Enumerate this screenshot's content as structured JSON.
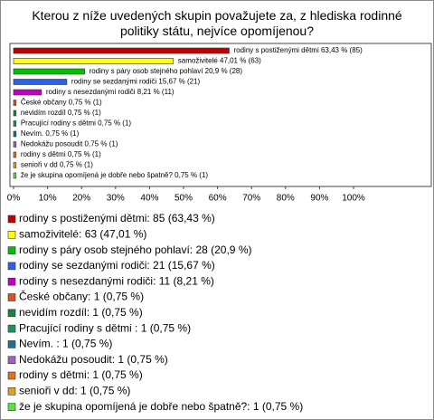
{
  "chart_data": {
    "type": "bar",
    "orientation": "horizontal",
    "title": "Kterou z níže uvedených skupin považujete za, z hlediska rodinné politiky státu, nejvíce opomíjenou?",
    "categories": [
      "rodiny s postiženými dětmi",
      "samoživitelé",
      "rodiny s páry osob stejného pohlaví",
      "rodiny se sezdanými rodiči",
      "rodiny s nesezdanými rodiči",
      "České občany",
      "nevidím rozdíl",
      "Pracující rodiny s dětmi ",
      "Nevím. ",
      "Nedokážu posoudit",
      "rodiny s dětmi",
      "senioři v dd",
      "že je skupina opomíjená je dobře nebo špatně?"
    ],
    "values": [
      63.43,
      47.01,
      20.9,
      15.67,
      8.21,
      0.75,
      0.75,
      0.75,
      0.75,
      0.75,
      0.75,
      0.75,
      0.75
    ],
    "value_labels": [
      "rodiny s postiženými dětmi 63,43 % (85)",
      "samoživitelé 47,01 % (63)",
      "rodiny s páry osob stejného pohlaví 20,9 % (28)",
      "rodiny se sezdanými rodiči 15,67 % (21)",
      "rodiny s nesezdanými rodiči 8,21 % (11)",
      "České občany 0,75 % (1)",
      "nevidím rozdíl 0,75 % (1)",
      "Pracující rodiny s dětmi  0,75 % (1)",
      "Nevím.  0,75 % (1)",
      "Nedokážu posoudit 0,75 % (1)",
      "rodiny s dětmi 0,75 % (1)",
      "senioři v dd 0,75 % (1)",
      "že je skupina opomíjená je dobře nebo špatně? 0,75 % (1)"
    ],
    "legend_labels": [
      "rodiny s postiženými dětmi: 85 (63,43 %)",
      "samoživitelé: 63 (47,01 %)",
      "rodiny s páry osob stejného pohlaví: 28 (20,9 %)",
      "rodiny se sezdanými rodiči: 21 (15,67 %)",
      "rodiny s nesezdanými rodiči: 11 (8,21 %)",
      "České občany: 1 (0,75 %)",
      "nevidím rozdíl: 1 (0,75 %)",
      "Pracující rodiny s dětmi : 1 (0,75 %)",
      "Nevím. : 1 (0,75 %)",
      "Nedokážu posoudit: 1 (0,75 %)",
      "rodiny s dětmi: 1 (0,75 %)",
      "senioři v dd: 1 (0,75 %)",
      "že je skupina opomíjená je dobře nebo špatně?: 1 (0,75 %)"
    ],
    "colors": [
      "#c00000",
      "#ffff00",
      "#00c000",
      "#3060e0",
      "#c000c0",
      "#e05020",
      "#208040",
      "#209060",
      "#207090",
      "#a060c0",
      "#e07020",
      "#e0a020",
      "#60e040"
    ],
    "xlim": [
      0,
      100
    ],
    "xticks": [
      {
        "value": 0,
        "label": "0%"
      },
      {
        "value": 10,
        "label": "10%"
      },
      {
        "value": 20,
        "label": "20%"
      },
      {
        "value": 30,
        "label": "30%"
      },
      {
        "value": 40,
        "label": "40%"
      },
      {
        "value": 50,
        "label": "50%"
      },
      {
        "value": 60,
        "label": "60%"
      },
      {
        "value": 70,
        "label": "70%"
      },
      {
        "value": 80,
        "label": "80%"
      },
      {
        "value": 90,
        "label": "90%"
      },
      {
        "value": 100,
        "label": "100%"
      }
    ],
    "grid": false
  }
}
